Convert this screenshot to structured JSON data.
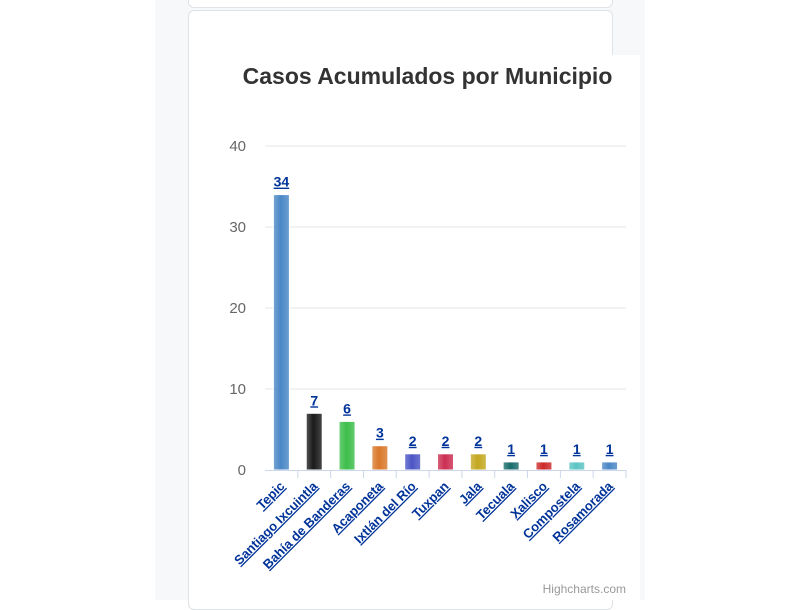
{
  "chart_data": {
    "type": "bar",
    "title": "Casos Acumulados por Municipio",
    "categories": [
      "Tepic",
      "Santiago Ixcuintla",
      "Bahía de Banderas",
      "Acaponeta",
      "Ixtlán del Río",
      "Tuxpan",
      "Jala",
      "Tecuala",
      "Xalisco",
      "Compostela",
      "Rosamorada"
    ],
    "values": [
      34,
      7,
      6,
      3,
      2,
      2,
      2,
      1,
      1,
      1,
      1
    ],
    "colors": [
      "#4a87c6",
      "#1a1a1a",
      "#3dbd4a",
      "#d9782a",
      "#4b55c4",
      "#cc2e52",
      "#c4a820",
      "#1a6b6b",
      "#cc2a2a",
      "#5cc4c4",
      "#4a87c6"
    ],
    "ylim": [
      0,
      40
    ],
    "yticks": [
      0,
      10,
      20,
      30,
      40
    ],
    "grid": true,
    "data_labels": true
  },
  "credits": "Highcharts.com"
}
